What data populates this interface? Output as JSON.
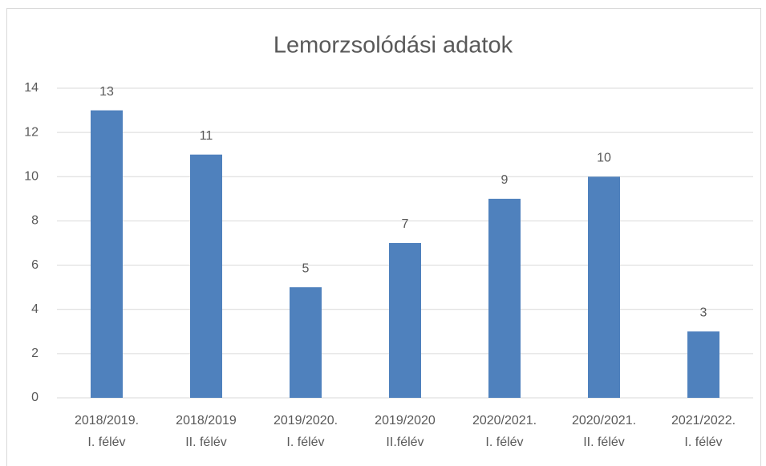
{
  "chart_data": {
    "type": "bar",
    "title": "Lemorzsolódási adatok",
    "categories": [
      [
        "2018/2019.",
        "I. félév"
      ],
      [
        "2018/2019",
        "II. félév"
      ],
      [
        "2019/2020.",
        "I. félév"
      ],
      [
        "2019/2020",
        "II.félév"
      ],
      [
        "2020/2021.",
        "I. félév"
      ],
      [
        "2020/2021.",
        "II. félév"
      ],
      [
        "2021/2022.",
        "I. félév"
      ]
    ],
    "values": [
      13,
      11,
      5,
      7,
      9,
      10,
      3
    ],
    "color": "#4f81bd",
    "ylim": [
      0,
      14
    ],
    "yticks": [
      0,
      2,
      4,
      6,
      8,
      10,
      12,
      14
    ],
    "grid": true,
    "data_labels": true
  }
}
